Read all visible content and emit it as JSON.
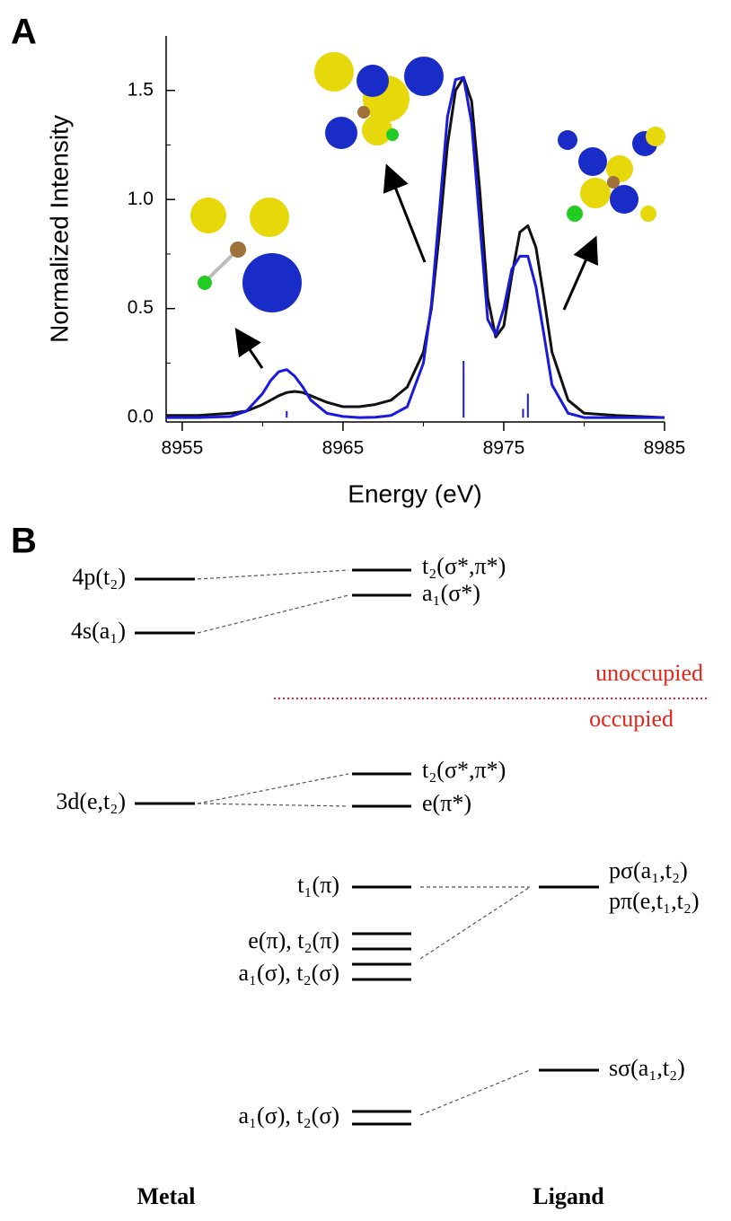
{
  "panel_a_label": "A",
  "chart_data": {
    "type": "line",
    "xlabel": "Energy (eV)",
    "ylabel": "Normalized Intensity",
    "xlim": [
      8954,
      8985
    ],
    "xticks": [
      8955,
      8965,
      8975,
      8985
    ],
    "xminor": [
      8960,
      8970,
      8980
    ],
    "ylim": [
      -0.02,
      1.75
    ],
    "yticks": [
      {
        "value": 0,
        "label": "0.0"
      },
      0.5,
      {
        "value": 1,
        "label": "1.0"
      },
      1.5
    ],
    "yminor": [
      0.25,
      0.75,
      1.25
    ],
    "x": [
      8954,
      8956,
      8958,
      8959,
      8960,
      8960.5,
      8961,
      8961.5,
      8962,
      8962.5,
      8963,
      8964,
      8965,
      8966,
      8967,
      8968,
      8969,
      8970,
      8970.5,
      8971,
      8971.5,
      8972,
      8972.5,
      8973,
      8973.5,
      8974,
      8974.5,
      8975,
      8975.5,
      8976,
      8976.5,
      8977,
      8977.5,
      8978,
      8979,
      8980,
      8982,
      8985
    ],
    "series": [
      {
        "color": "#111111",
        "values": [
          0.01,
          0.01,
          0.02,
          0.03,
          0.06,
          0.08,
          0.1,
          0.115,
          0.12,
          0.115,
          0.1,
          0.07,
          0.05,
          0.05,
          0.06,
          0.08,
          0.14,
          0.3,
          0.5,
          0.85,
          1.25,
          1.5,
          1.56,
          1.45,
          1.05,
          0.55,
          0.37,
          0.42,
          0.65,
          0.85,
          0.88,
          0.78,
          0.55,
          0.3,
          0.08,
          0.02,
          0.01,
          0
        ]
      },
      {
        "color": "#1a1adc",
        "values": [
          0,
          0,
          0.005,
          0.03,
          0.11,
          0.17,
          0.21,
          0.22,
          0.19,
          0.14,
          0.08,
          0.02,
          0.005,
          0,
          0.002,
          0.01,
          0.05,
          0.25,
          0.52,
          0.95,
          1.38,
          1.55,
          1.56,
          1.35,
          0.9,
          0.45,
          0.38,
          0.5,
          0.68,
          0.74,
          0.74,
          0.6,
          0.38,
          0.15,
          0.02,
          0,
          0,
          0
        ]
      }
    ],
    "sticks": {
      "color": "#1a1adc",
      "x": [
        8961.5,
        8972.5,
        8976.2,
        8976.5
      ],
      "values": [
        0.03,
        0.26,
        0.04,
        0.11
      ]
    }
  },
  "panel_b": {
    "label": "B",
    "metal": [
      "4p(t₂)",
      "4s(a₁)",
      "3d(e,t₂)"
    ],
    "mo_upper": [
      "t₂(σ*,π*)",
      "a₁(σ*)",
      "t₂(σ*,π*)",
      "e(π*)"
    ],
    "mo_lower": [
      "t₁(π)",
      "e(π), t₂(π)",
      "a₁(σ), t₂(σ)",
      "a₁(σ), t₂(σ)"
    ],
    "ligand": [
      "pσ(a₁,t₂)",
      "pπ(e,t₁,t₂)",
      "sσ(a₁,t₂)"
    ],
    "unoccupied": "unoccupied",
    "occupied": "occupied",
    "footer": [
      "Metal",
      "Ligand"
    ]
  }
}
